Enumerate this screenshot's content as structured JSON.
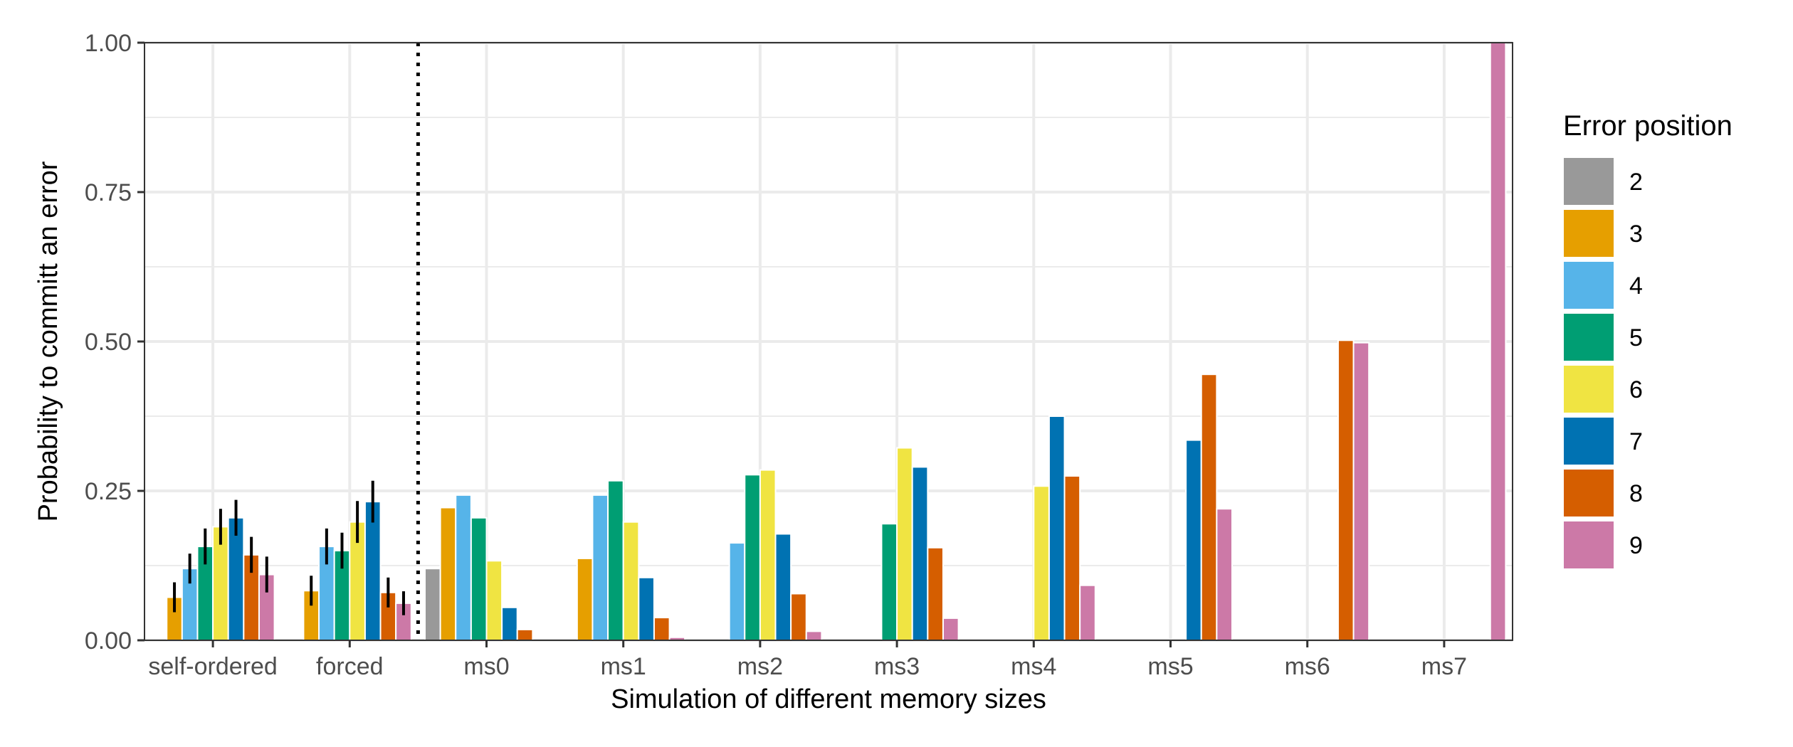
{
  "chart_data": {
    "type": "bar",
    "title": "",
    "xlabel": "Simulation of different memory sizes",
    "ylabel": "Probability to committ an error",
    "ylim": [
      0,
      1
    ],
    "yticks": [
      "0.00",
      "0.25",
      "0.50",
      "0.75",
      "1.00"
    ],
    "yticks_values": [
      0,
      0.25,
      0.5,
      0.75,
      1.0
    ],
    "grid": true,
    "legend_position": "right",
    "legend_title": "Error position",
    "separator_after_category": "forced",
    "categories": [
      "self-ordered",
      "forced",
      "ms0",
      "ms1",
      "ms2",
      "ms3",
      "ms4",
      "ms5",
      "ms6",
      "ms7"
    ],
    "series": [
      {
        "name": "2",
        "color": "#999999",
        "values": [
          0,
          0,
          0.12,
          0,
          0,
          0,
          0,
          0,
          0,
          0
        ]
      },
      {
        "name": "3",
        "color": "#E69F00",
        "values": [
          0.072,
          0.083,
          0.222,
          0.137,
          0,
          0,
          0,
          0,
          0,
          0
        ]
      },
      {
        "name": "4",
        "color": "#56B4E9",
        "values": [
          0.12,
          0.157,
          0.243,
          0.243,
          0.163,
          0,
          0,
          0,
          0,
          0
        ]
      },
      {
        "name": "5",
        "color": "#009E73",
        "values": [
          0.157,
          0.15,
          0.205,
          0.267,
          0.277,
          0.195,
          0,
          0,
          0,
          0
        ]
      },
      {
        "name": "6",
        "color": "#F0E442",
        "values": [
          0.19,
          0.198,
          0.133,
          0.198,
          0.285,
          0.322,
          0.258,
          0,
          0,
          0
        ]
      },
      {
        "name": "7",
        "color": "#0072B2",
        "values": [
          0.205,
          0.232,
          0.055,
          0.105,
          0.178,
          0.29,
          0.375,
          0.335,
          0,
          0
        ]
      },
      {
        "name": "8",
        "color": "#D55E00",
        "values": [
          0.143,
          0.08,
          0.018,
          0.038,
          0.078,
          0.155,
          0.275,
          0.445,
          0.502,
          0
        ]
      },
      {
        "name": "9",
        "color": "#CC79A7",
        "values": [
          0.11,
          0.062,
          0,
          0.005,
          0.015,
          0.037,
          0.092,
          0.22,
          0.498,
          1.0
        ]
      }
    ],
    "error_bars": {
      "categories": [
        "self-ordered",
        "forced"
      ],
      "half_width": [
        [
          0.022,
          0.025,
          0.025,
          0.03,
          0.03,
          0.03,
          0.03,
          0.03
        ],
        [
          0.025,
          0.025,
          0.03,
          0.03,
          0.035,
          0.035,
          0.025,
          0.02
        ]
      ],
      "color": "#000000"
    }
  }
}
